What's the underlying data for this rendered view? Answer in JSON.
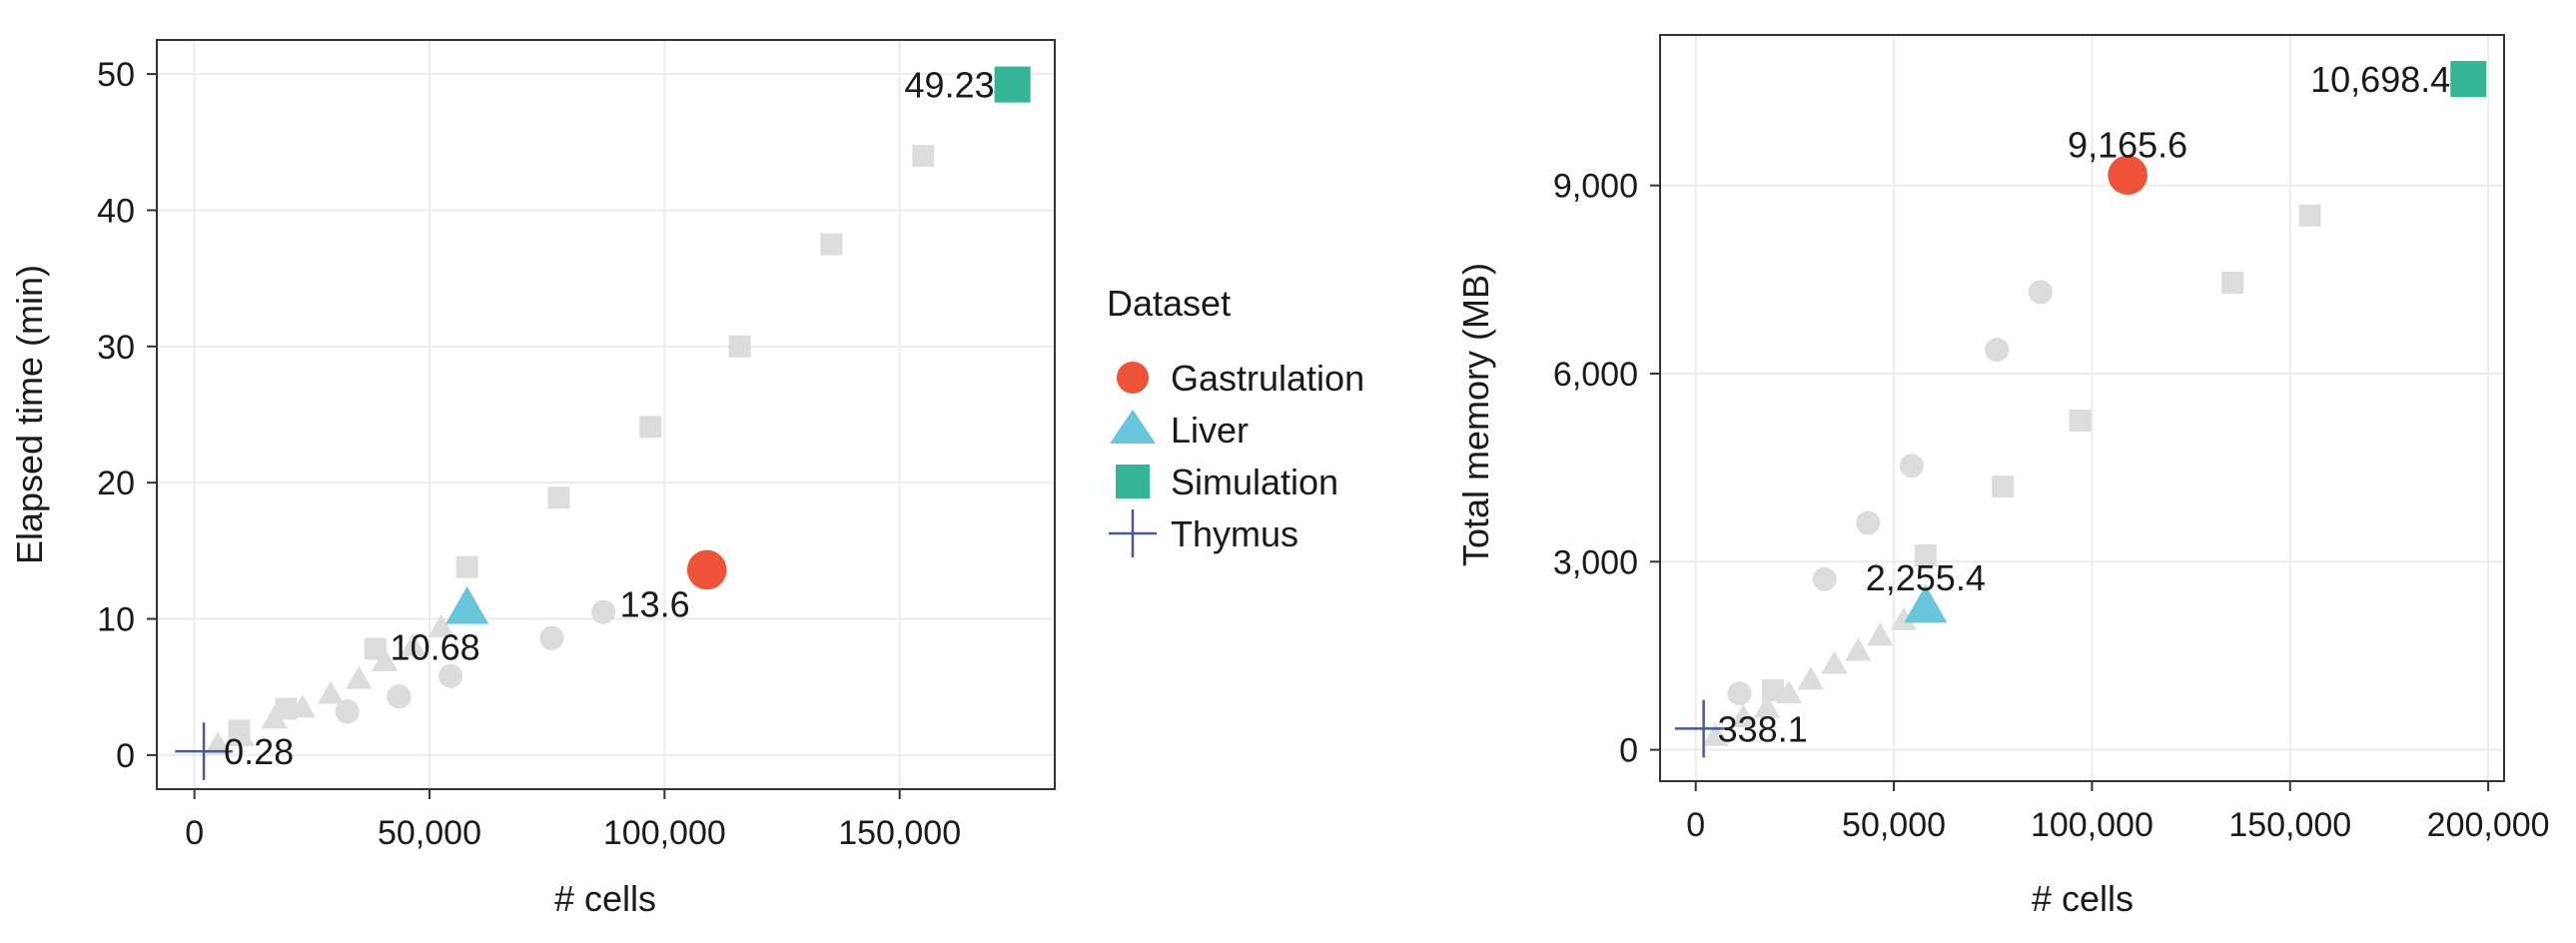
{
  "legend": {
    "title": "Dataset",
    "items": [
      {
        "label": "Gastrulation",
        "shape": "circle",
        "color": "#EE5337"
      },
      {
        "label": "Liver",
        "shape": "triangle",
        "color": "#67C5DC"
      },
      {
        "label": "Simulation",
        "shape": "square",
        "color": "#33B596"
      },
      {
        "label": "Thymus",
        "shape": "plus",
        "color": "#4A5A94"
      }
    ]
  },
  "colors": {
    "background_points": "#DCDCDC",
    "grid": "#EBEBEB",
    "frame": "#333333"
  },
  "chart_data": [
    {
      "type": "scatter",
      "xlabel": "# cells",
      "ylabel": "Elapsed time (min)",
      "xlim": [
        -8000,
        183000
      ],
      "ylim": [
        -2.5,
        52.5
      ],
      "xticks": [
        0,
        50000,
        100000,
        150000
      ],
      "xtick_labels": [
        "0",
        "50,000",
        "100,000",
        "150,000"
      ],
      "yticks": [
        0,
        10,
        20,
        30,
        40,
        50
      ],
      "ytick_labels": [
        "0",
        "10",
        "20",
        "30",
        "40",
        "50"
      ],
      "grid": true,
      "highlighted": [
        {
          "series": "Gastrulation",
          "shape": "circle",
          "x": 109000,
          "y": 13.6,
          "label": "13.6"
        },
        {
          "series": "Liver",
          "shape": "triangle",
          "x": 58000,
          "y": 10.68,
          "label": "10.68"
        },
        {
          "series": "Simulation",
          "shape": "square",
          "x": 174000,
          "y": 49.23,
          "label": "49.23"
        },
        {
          "series": "Thymus",
          "shape": "plus",
          "x": 2000,
          "y": 0.28,
          "label": "0.28"
        }
      ],
      "background": [
        {
          "shape": "circle",
          "x": 32500,
          "y": 3.2
        },
        {
          "shape": "circle",
          "x": 43500,
          "y": 4.3
        },
        {
          "shape": "circle",
          "x": 54500,
          "y": 5.8
        },
        {
          "shape": "circle",
          "x": 76000,
          "y": 8.6
        },
        {
          "shape": "circle",
          "x": 87000,
          "y": 10.5
        },
        {
          "shape": "triangle",
          "x": 5000,
          "y": 0.7
        },
        {
          "shape": "triangle",
          "x": 10000,
          "y": 1.3
        },
        {
          "shape": "triangle",
          "x": 17000,
          "y": 2.6
        },
        {
          "shape": "triangle",
          "x": 23000,
          "y": 3.4
        },
        {
          "shape": "triangle",
          "x": 29000,
          "y": 4.4
        },
        {
          "shape": "triangle",
          "x": 35000,
          "y": 5.5
        },
        {
          "shape": "triangle",
          "x": 40500,
          "y": 6.8
        },
        {
          "shape": "triangle",
          "x": 46500,
          "y": 7.9
        },
        {
          "shape": "triangle",
          "x": 52500,
          "y": 9.3
        },
        {
          "shape": "square",
          "x": 9500,
          "y": 1.8
        },
        {
          "shape": "square",
          "x": 19500,
          "y": 3.4
        },
        {
          "shape": "square",
          "x": 38500,
          "y": 7.8
        },
        {
          "shape": "square",
          "x": 58000,
          "y": 13.8
        },
        {
          "shape": "square",
          "x": 77500,
          "y": 18.9
        },
        {
          "shape": "square",
          "x": 97000,
          "y": 24.1
        },
        {
          "shape": "square",
          "x": 116000,
          "y": 30.0
        },
        {
          "shape": "square",
          "x": 135500,
          "y": 37.5
        },
        {
          "shape": "square",
          "x": 155000,
          "y": 44.0
        }
      ]
    },
    {
      "type": "scatter",
      "xlabel": "# cells",
      "ylabel": "Total memory (MB)",
      "xlim": [
        -9000,
        204000
      ],
      "ylim": [
        -500,
        11400
      ],
      "xticks": [
        0,
        50000,
        100000,
        150000,
        200000
      ],
      "xtick_labels": [
        "0",
        "50,000",
        "100,000",
        "150,000",
        "200,000"
      ],
      "yticks": [
        0,
        3000,
        6000,
        9000
      ],
      "ytick_labels": [
        "0",
        "3,000",
        "6,000",
        "9,000"
      ],
      "grid": true,
      "highlighted": [
        {
          "series": "Gastrulation",
          "shape": "circle",
          "x": 109000,
          "y": 9165.6,
          "label": "9,165.6"
        },
        {
          "series": "Liver",
          "shape": "triangle",
          "x": 58000,
          "y": 2255.4,
          "label": "2,255.4"
        },
        {
          "series": "Simulation",
          "shape": "square",
          "x": 195000,
          "y": 10698.4,
          "label": "10,698.4"
        },
        {
          "series": "Thymus",
          "shape": "plus",
          "x": 2000,
          "y": 338.1,
          "label": "338.1"
        }
      ],
      "background": [
        {
          "shape": "circle",
          "x": 11000,
          "y": 900
        },
        {
          "shape": "circle",
          "x": 32500,
          "y": 2720
        },
        {
          "shape": "circle",
          "x": 43500,
          "y": 3620
        },
        {
          "shape": "circle",
          "x": 54500,
          "y": 4530
        },
        {
          "shape": "circle",
          "x": 76000,
          "y": 6380
        },
        {
          "shape": "circle",
          "x": 87000,
          "y": 7300
        },
        {
          "shape": "triangle",
          "x": 5000,
          "y": 200
        },
        {
          "shape": "triangle",
          "x": 12000,
          "y": 500
        },
        {
          "shape": "triangle",
          "x": 18000,
          "y": 650
        },
        {
          "shape": "triangle",
          "x": 23500,
          "y": 880
        },
        {
          "shape": "triangle",
          "x": 29000,
          "y": 1100
        },
        {
          "shape": "triangle",
          "x": 35000,
          "y": 1350
        },
        {
          "shape": "triangle",
          "x": 41000,
          "y": 1560
        },
        {
          "shape": "triangle",
          "x": 46500,
          "y": 1800
        },
        {
          "shape": "triangle",
          "x": 52500,
          "y": 2050
        },
        {
          "shape": "square",
          "x": 19500,
          "y": 950
        },
        {
          "shape": "square",
          "x": 58000,
          "y": 3100
        },
        {
          "shape": "square",
          "x": 77500,
          "y": 4200
        },
        {
          "shape": "square",
          "x": 97000,
          "y": 5250
        },
        {
          "shape": "square",
          "x": 135500,
          "y": 7450
        },
        {
          "shape": "square",
          "x": 155000,
          "y": 8520
        }
      ]
    }
  ]
}
